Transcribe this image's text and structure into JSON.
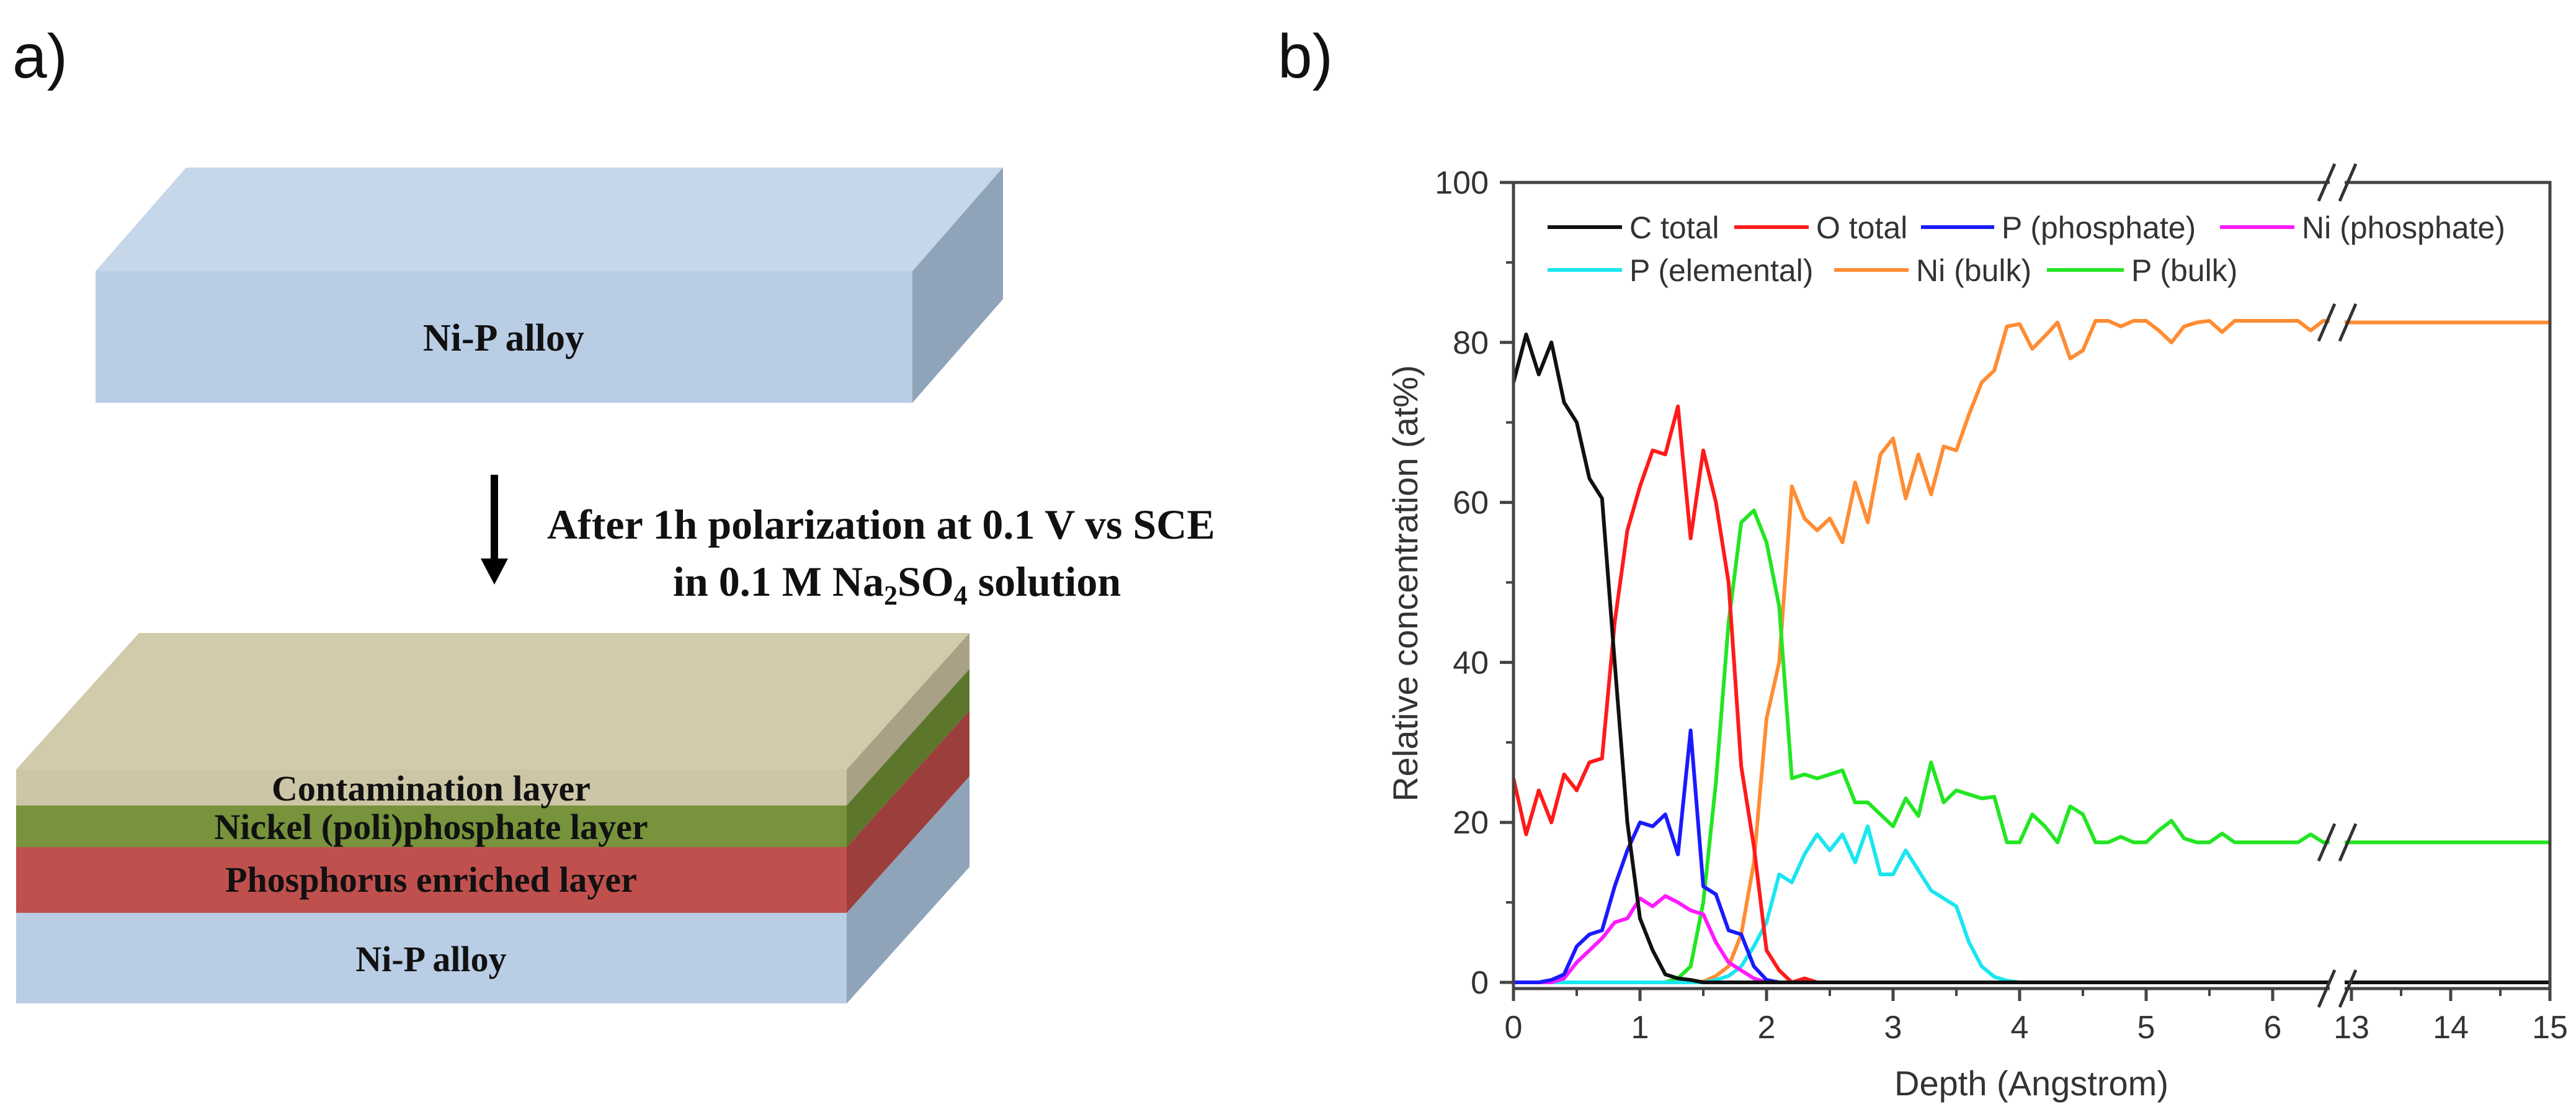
{
  "panel_a": {
    "label": "a)",
    "top_block_label": "Ni-P alloy",
    "process_line1": "After 1h polarization at 0.1 V vs SCE",
    "process_line2": {
      "pre": "in 0.1 M Na",
      "sub1": "2",
      "mid": "SO",
      "sub2": "4",
      "post": " solution"
    },
    "layers": [
      {
        "label": "Contamination layer",
        "color": "#cdc6a6",
        "side": "#a8a185"
      },
      {
        "label": "Nickel (poli)phosphate layer",
        "color": "#77933c",
        "side": "#5c772c"
      },
      {
        "label": "Phosphorus enriched layer",
        "color": "#c0504d",
        "side": "#9c3f3c"
      },
      {
        "label": "Ni-P alloy",
        "color": "#b9cde5",
        "side": "#8fa3b9"
      }
    ],
    "block_colors": {
      "front": "#b9cde5",
      "top": "#c6d7ea",
      "side": "#8fa3b9",
      "contam_top": "#d1caab"
    }
  },
  "panel_b": {
    "label": "b)"
  },
  "chart_data": {
    "type": "line",
    "title": "",
    "xlabel": "Depth (Angstrom)",
    "ylabel": "Relative concentration (at%)",
    "ylim": [
      0,
      100
    ],
    "x_axis_break": [
      6.45,
      13
    ],
    "xlim": [
      0,
      15
    ],
    "x_ticks": [
      "0",
      "1",
      "2",
      "3",
      "4",
      "5",
      "6",
      "13",
      "14",
      "15"
    ],
    "x_tick_values": [
      0,
      1,
      2,
      3,
      4,
      5,
      6,
      13,
      14,
      15
    ],
    "y_ticks": [
      "0",
      "20",
      "40",
      "60",
      "80",
      "100"
    ],
    "y_tick_values": [
      0,
      20,
      40,
      60,
      80,
      100
    ],
    "grid": false,
    "legend_placement": "top",
    "x": [
      0,
      0.1,
      0.2,
      0.3,
      0.4,
      0.5,
      0.6,
      0.7,
      0.8,
      0.9,
      1,
      1.1,
      1.2,
      1.3,
      1.4,
      1.5,
      1.6,
      1.7,
      1.8,
      1.9,
      2,
      2.1,
      2.2,
      2.3,
      2.4,
      2.5,
      2.6,
      2.7,
      2.8,
      2.9,
      3,
      3.1,
      3.2,
      3.3,
      3.4,
      3.5,
      3.6,
      3.7,
      3.8,
      3.9,
      4,
      4.1,
      4.2,
      4.3,
      4.4,
      4.5,
      4.6,
      4.7,
      4.8,
      4.9,
      5,
      5.1,
      5.2,
      5.3,
      5.4,
      5.5,
      5.6,
      5.7,
      5.8,
      5.9,
      6,
      6.1,
      6.2,
      6.3,
      6.4,
      13,
      15
    ],
    "series": [
      {
        "name": "C total",
        "color": "#111111",
        "values": [
          75,
          81,
          76,
          80,
          72.5,
          70,
          63,
          60.5,
          40,
          20,
          8,
          4,
          1,
          0.5,
          0.3,
          0,
          0,
          0,
          0,
          0,
          0,
          0,
          0,
          0,
          0,
          0,
          0,
          0,
          0,
          0,
          0,
          0,
          0,
          0,
          0,
          0,
          0,
          0,
          0,
          0,
          0,
          0,
          0,
          0,
          0,
          0,
          0,
          0,
          0,
          0,
          0,
          0,
          0,
          0,
          0,
          0,
          0,
          0,
          0,
          0,
          0,
          0,
          0,
          0,
          0,
          0,
          0
        ]
      },
      {
        "name": "O total",
        "color": "#ff1a1a",
        "values": [
          25.5,
          18.5,
          24,
          20,
          26,
          24,
          27.5,
          28,
          45,
          56.5,
          62,
          66.5,
          66,
          72,
          55.5,
          66.5,
          60,
          50,
          27,
          17,
          4,
          1.5,
          0,
          0.5,
          0,
          0,
          0,
          0,
          0,
          0,
          0,
          0,
          0,
          0,
          0,
          0,
          0,
          0,
          0,
          0,
          0,
          0,
          0,
          0,
          0,
          0,
          0,
          0,
          0,
          0,
          0,
          0,
          0,
          0,
          0,
          0,
          0,
          0,
          0,
          0,
          0,
          0,
          0,
          0,
          0,
          0,
          0
        ]
      },
      {
        "name": "P (phosphate)",
        "color": "#1a1aff",
        "values": [
          0,
          0,
          0,
          0.3,
          1,
          4.5,
          6,
          6.5,
          12,
          16.5,
          20,
          19.5,
          21,
          16,
          31.5,
          12,
          11,
          6.5,
          6,
          2,
          0.3,
          0,
          0,
          0,
          0,
          0,
          0,
          0,
          0,
          0,
          0,
          0,
          0,
          0,
          0,
          0,
          0,
          0,
          0,
          0,
          0,
          0,
          0,
          0,
          0,
          0,
          0,
          0,
          0,
          0,
          0,
          0,
          0,
          0,
          0,
          0,
          0,
          0,
          0,
          0,
          0,
          0,
          0,
          0,
          0,
          0,
          0
        ]
      },
      {
        "name": "Ni (phosphate)",
        "color": "#ff1aff",
        "values": [
          0,
          0,
          0,
          0,
          0.5,
          2.5,
          4,
          5.5,
          7.5,
          8,
          10.5,
          9.5,
          10.8,
          10,
          9,
          8.5,
          5,
          2.5,
          1.5,
          0.5,
          0,
          0,
          0,
          0,
          0,
          0,
          0,
          0,
          0,
          0,
          0,
          0,
          0,
          0,
          0,
          0,
          0,
          0,
          0,
          0,
          0,
          0,
          0,
          0,
          0,
          0,
          0,
          0,
          0,
          0,
          0,
          0,
          0,
          0,
          0,
          0,
          0,
          0,
          0,
          0,
          0,
          0,
          0,
          0,
          0,
          0,
          0
        ]
      },
      {
        "name": "P (elemental)",
        "color": "#1ae6f0",
        "values": [
          0,
          0,
          0,
          0,
          0,
          0,
          0,
          0,
          0,
          0,
          0,
          0,
          0,
          0,
          0,
          0,
          0.3,
          0.8,
          2,
          4.5,
          7.5,
          13.5,
          12.5,
          16,
          18.5,
          16.5,
          18.5,
          15,
          19.5,
          13.5,
          13.5,
          16.5,
          14,
          11.5,
          10.5,
          9.5,
          5,
          2,
          0.7,
          0.2,
          0,
          0,
          0,
          0,
          0,
          0,
          0,
          0,
          0,
          0,
          0,
          0,
          0,
          0,
          0,
          0,
          0,
          0,
          0,
          0,
          0,
          0,
          0,
          0,
          0,
          0,
          0
        ]
      },
      {
        "name": "Ni (bulk)",
        "color": "#ff8c33",
        "values": [
          0,
          0,
          0,
          0,
          0,
          0,
          0,
          0,
          0,
          0,
          0,
          0,
          0,
          0,
          0,
          0.1,
          0.8,
          2,
          6,
          15,
          33,
          40,
          62,
          58,
          56.5,
          58,
          55,
          62.5,
          57.5,
          66,
          68,
          60.5,
          66,
          61,
          67,
          66.5,
          71,
          75,
          76.5,
          82,
          82.3,
          79.2,
          80.8,
          82.5,
          78,
          79,
          82.7,
          82.7,
          82,
          82.7,
          82.7,
          81.5,
          80,
          82,
          82.5,
          82.7,
          81.3,
          82.7,
          82.7,
          82.7,
          82.7,
          82.7,
          82.7,
          81.5,
          82.7,
          82.5,
          82.5
        ]
      },
      {
        "name": "P (bulk)",
        "color": "#22e622",
        "values": [
          0,
          0,
          0,
          0,
          0,
          0,
          0,
          0,
          0,
          0,
          0,
          0,
          0,
          0.5,
          2,
          10,
          25,
          45,
          57.5,
          59,
          55,
          47,
          25.5,
          26,
          25.5,
          26,
          26.5,
          22.5,
          22.5,
          21,
          19.5,
          23,
          20.8,
          27.5,
          22.5,
          24,
          23.5,
          23,
          23.2,
          17.5,
          17.5,
          21,
          19.5,
          17.5,
          22,
          21,
          17.5,
          17.5,
          18.2,
          17.5,
          17.5,
          19,
          20.2,
          18,
          17.5,
          17.5,
          18.6,
          17.5,
          17.5,
          17.5,
          17.5,
          17.5,
          17.5,
          18.5,
          17.5,
          17.5,
          17.5
        ]
      }
    ]
  }
}
